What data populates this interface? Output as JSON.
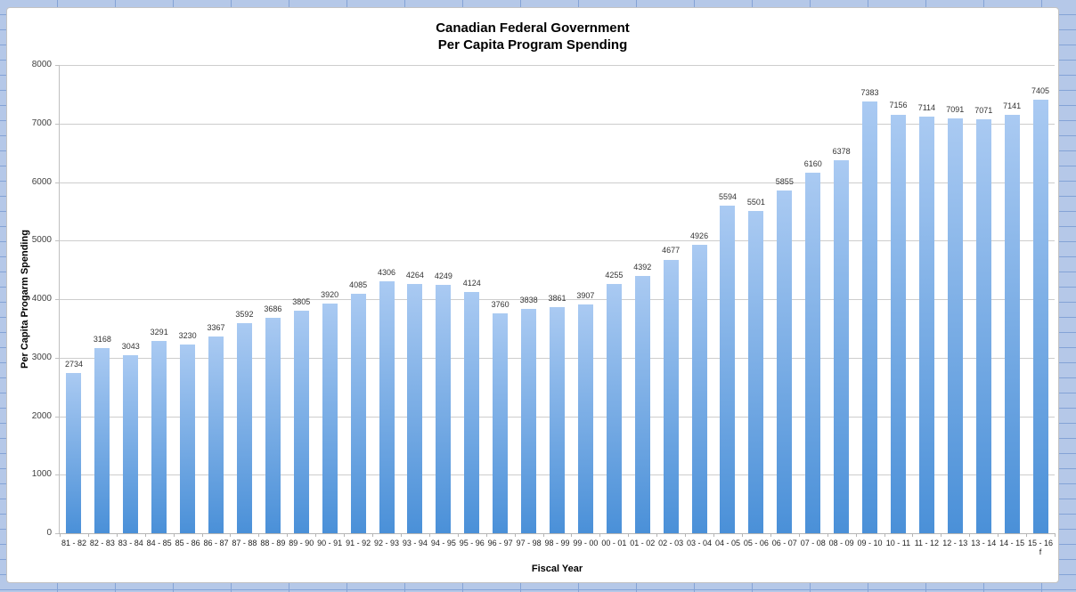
{
  "window": {
    "sheet_background_color": "#b5c8e8",
    "sheet_gridline_color": "#84a3d6"
  },
  "chart_data": {
    "type": "bar",
    "title": "Canadian Federal Government Per Capita Program Spending",
    "title_lines": [
      "Canadian Federal Government",
      "Per Capita Program Spending"
    ],
    "xlabel": "Fiscal Year",
    "ylabel": "Per Capita Progarm Spending",
    "categories": [
      "81 - 82",
      "82 - 83",
      "83 - 84",
      "84 - 85",
      "85 - 86",
      "86 - 87",
      "87 - 88",
      "88 - 89",
      "89 - 90",
      "90 - 91",
      "91 - 92",
      "92 - 93",
      "93 - 94",
      "94 - 95",
      "95 - 96",
      "96 - 97",
      "97 - 98",
      "98 - 99",
      "99 - 00",
      "00 - 01",
      "01 - 02",
      "02 - 03",
      "03 - 04",
      "04 - 05",
      "05 - 06",
      "06 - 07",
      "07 - 08",
      "08 - 09",
      "09 - 10",
      "10 - 11",
      "11 - 12",
      "12 - 13",
      "13 - 14",
      "14 - 15",
      "15 - 16\nf"
    ],
    "values": [
      2734,
      3168,
      3043,
      3291,
      3230,
      3367,
      3592,
      3686,
      3805,
      3920,
      4085,
      4306,
      4264,
      4249,
      4124,
      3760,
      3838,
      3861,
      3907,
      4255,
      4392,
      4677,
      4926,
      5594,
      5501,
      5855,
      6160,
      6378,
      7383,
      7156,
      7114,
      7091,
      7071,
      7141,
      7405
    ],
    "data_labels_shown": true,
    "ylim": [
      0,
      8000
    ],
    "ytick_step": 1000,
    "ytick_labels": [
      "0",
      "1000",
      "2000",
      "3000",
      "4000",
      "5000",
      "6000",
      "7000",
      "8000"
    ],
    "grid": true,
    "legend": false,
    "bar_color_top": "#aacaf2",
    "bar_color_bottom": "#4a90d8",
    "gridline_color": "#cdcdcd",
    "axis_color": "#b5b5b5"
  }
}
